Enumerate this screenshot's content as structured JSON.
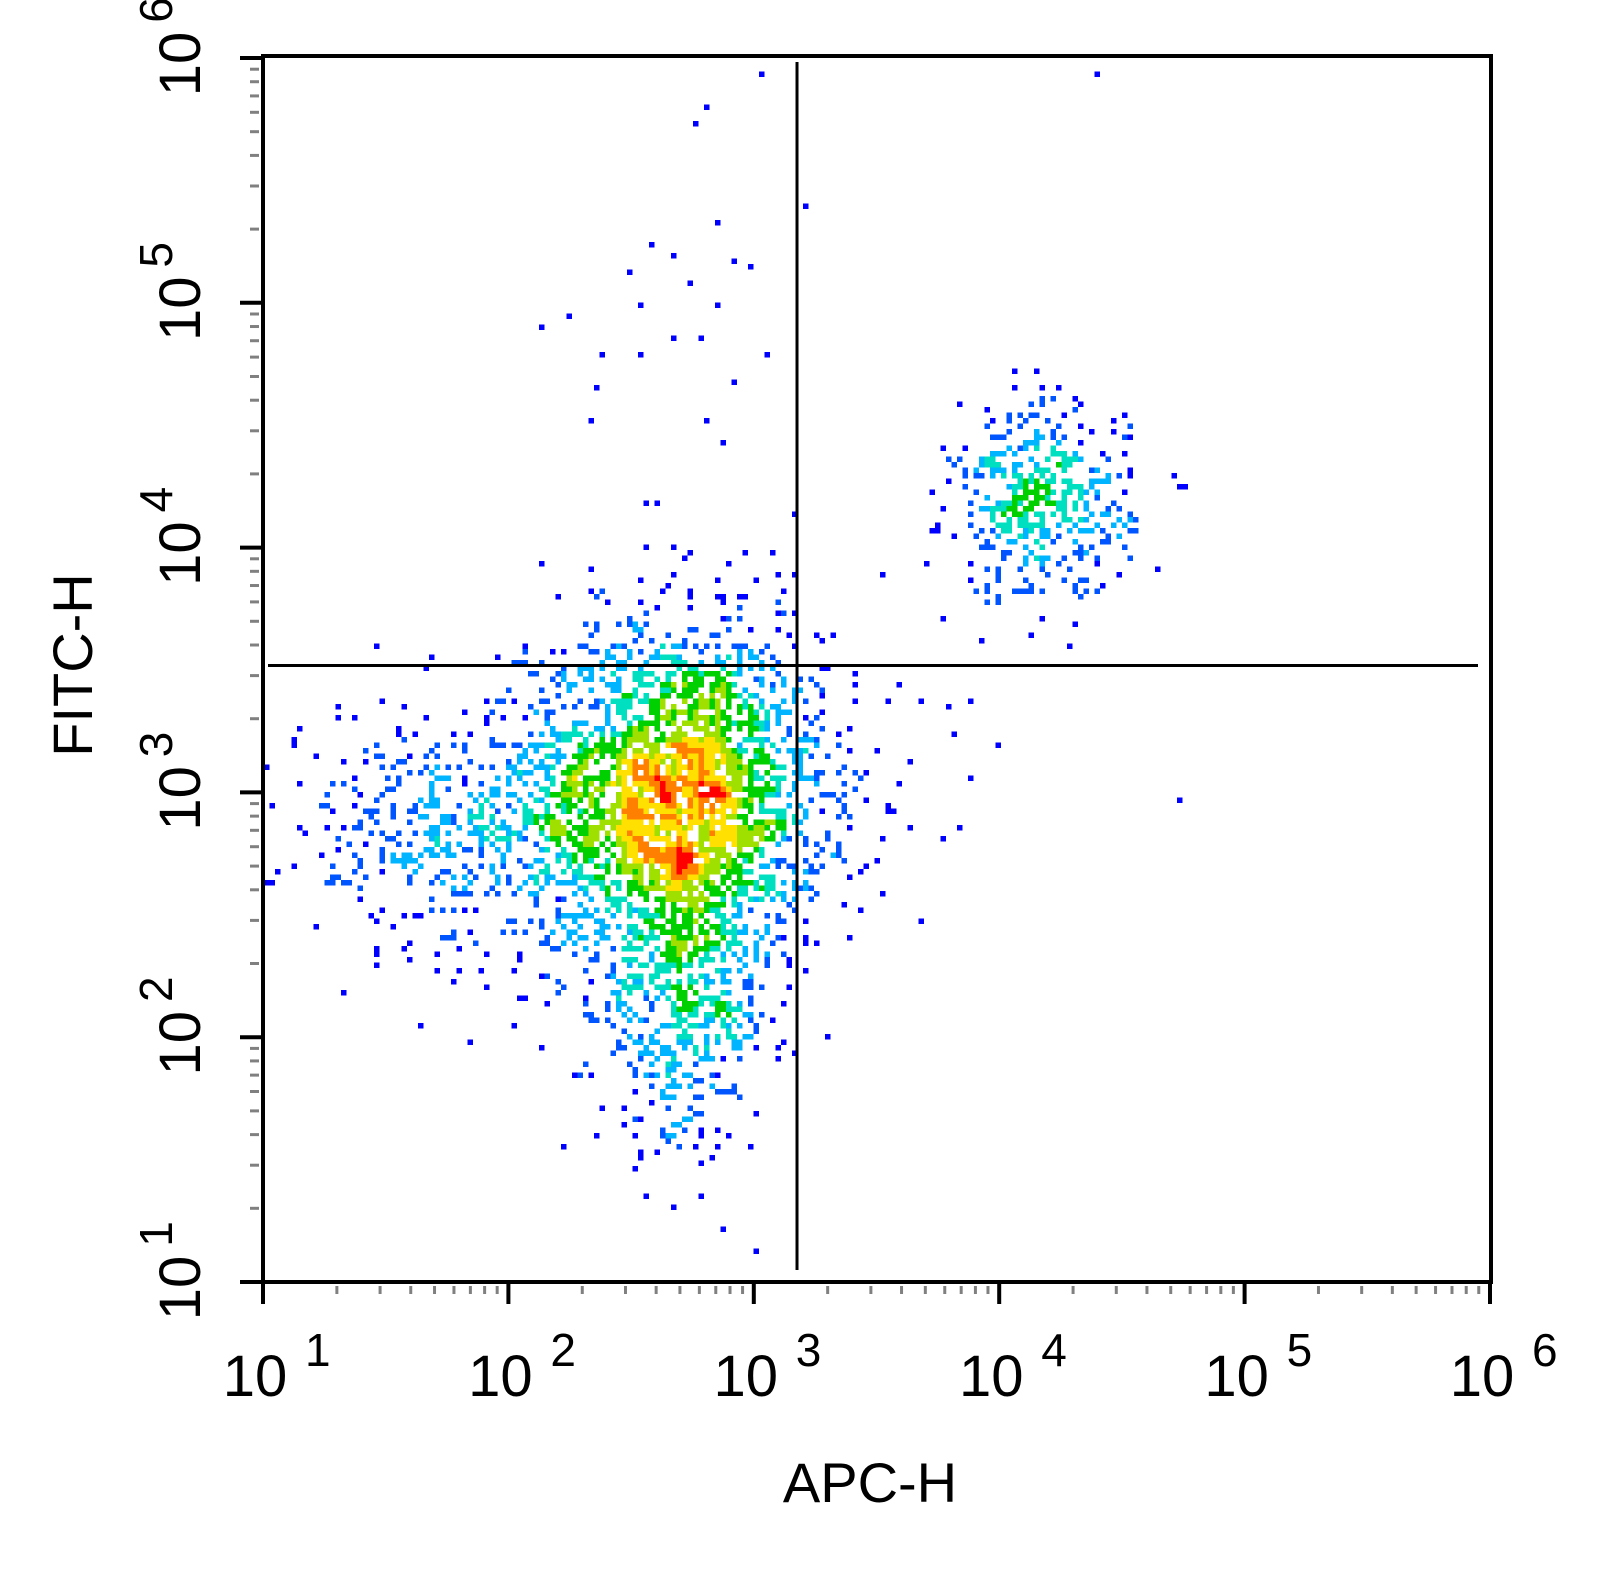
{
  "chart_data": {
    "type": "scatter",
    "subtype": "flow-cytometry-density-dot-plot",
    "title": "",
    "xlabel": "APC-H",
    "ylabel": "FITC-H",
    "x_scale": "log",
    "y_scale": "log",
    "xlim": [
      10,
      1000000
    ],
    "ylim": [
      10,
      1000000
    ],
    "x_ticks": [
      {
        "base": "10",
        "exp": "1"
      },
      {
        "base": "10",
        "exp": "2"
      },
      {
        "base": "10",
        "exp": "3"
      },
      {
        "base": "10",
        "exp": "4"
      },
      {
        "base": "10",
        "exp": "5"
      },
      {
        "base": "10",
        "exp": "6"
      }
    ],
    "y_ticks": [
      {
        "base": "10",
        "exp": "1"
      },
      {
        "base": "10",
        "exp": "2"
      },
      {
        "base": "10",
        "exp": "3"
      },
      {
        "base": "10",
        "exp": "4"
      },
      {
        "base": "10",
        "exp": "5"
      },
      {
        "base": "10",
        "exp": "6"
      }
    ],
    "grid": false,
    "legend": "none",
    "quadrant_gates": {
      "x": 1500,
      "y": 3300
    },
    "density_colors": [
      "#0000ff",
      "#0055ff",
      "#00b4ff",
      "#00e0c0",
      "#00d000",
      "#a0e000",
      "#ffe000",
      "#ff8000",
      "#ff0000"
    ],
    "populations": [
      {
        "name": "main",
        "center": [
          480,
          950
        ],
        "spread": [
          0.3,
          0.34
        ],
        "count": 2600
      },
      {
        "name": "main-low-tail",
        "center": [
          520,
          140
        ],
        "spread": [
          0.18,
          0.3
        ],
        "count": 500
      },
      {
        "name": "left-sparse",
        "center": [
          60,
          700
        ],
        "spread": [
          0.35,
          0.25
        ],
        "count": 450
      },
      {
        "name": "double-positive",
        "center": [
          15000,
          15000
        ],
        "spread": [
          0.18,
          0.2
        ],
        "count": 420
      }
    ],
    "sparse_points": [
      [
        650,
        620000
      ],
      [
        580,
        550000
      ],
      [
        1080,
        880000
      ],
      [
        700,
        215000
      ],
      [
        1600,
        245000
      ],
      [
        380,
        170000
      ],
      [
        470,
        155000
      ],
      [
        830,
        150000
      ],
      [
        990,
        140000
      ],
      [
        320,
        130000
      ],
      [
        550,
        120000
      ],
      [
        340,
        98000
      ],
      [
        730,
        100000
      ],
      [
        180,
        86000
      ],
      [
        140,
        80000
      ],
      [
        460,
        72000
      ],
      [
        610,
        70000
      ],
      [
        240,
        62000
      ],
      [
        350,
        61000
      ],
      [
        1150,
        60000
      ],
      [
        850,
        47000
      ],
      [
        225,
        45000
      ],
      [
        220,
        33000
      ],
      [
        630,
        33000
      ],
      [
        740,
        27500
      ],
      [
        370,
        15500
      ],
      [
        400,
        15500
      ],
      [
        360,
        10000
      ],
      [
        460,
        10000
      ],
      [
        540,
        9500
      ],
      [
        900,
        9300
      ],
      [
        135,
        8800
      ],
      [
        465,
        7800
      ],
      [
        1250,
        7600
      ],
      [
        1500,
        7600
      ],
      [
        340,
        7300
      ],
      [
        1000,
        7300
      ],
      [
        420,
        6800
      ],
      [
        240,
        6500
      ],
      [
        340,
        4500
      ],
      [
        1500,
        5300
      ],
      [
        1150,
        4000
      ],
      [
        860,
        5200
      ],
      [
        520,
        4200
      ],
      [
        700,
        4300
      ],
      [
        380,
        3600
      ],
      [
        600,
        3700
      ],
      [
        230,
        3800
      ],
      [
        90,
        3500
      ],
      [
        2600,
        3000
      ],
      [
        2600,
        2700
      ],
      [
        1900,
        2600
      ],
      [
        4700,
        2300
      ],
      [
        6100,
        2200
      ],
      [
        7700,
        2400
      ],
      [
        6700,
        1700
      ],
      [
        9800,
        1550
      ],
      [
        7700,
        1150
      ],
      [
        2300,
        1000
      ],
      [
        55000,
        920
      ],
      [
        4300,
        700
      ],
      [
        6800,
        720
      ],
      [
        5800,
        640
      ],
      [
        3300,
        640
      ],
      [
        2500,
        450
      ],
      [
        4800,
        300
      ],
      [
        2400,
        250
      ],
      [
        1800,
        240
      ],
      [
        1950,
        500
      ],
      [
        1650,
        650
      ],
      [
        1600,
        780
      ],
      [
        25000,
        880000
      ]
    ]
  }
}
